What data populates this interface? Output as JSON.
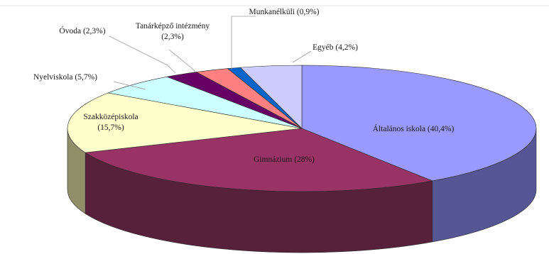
{
  "chart_data": {
    "type": "pie",
    "style": "3d",
    "title": "",
    "legend": "none",
    "unit": "%",
    "slices": [
      {
        "label": "Általános iskola",
        "value": 40.4,
        "value_text": "(40,4%)",
        "color": "#9999ff",
        "side_color": "#565694"
      },
      {
        "label": "Gimnázium",
        "value": 28,
        "value_text": "(28%)",
        "color": "#993366",
        "side_color": "#58213b"
      },
      {
        "label": "Szakközépiskola",
        "value": 15.7,
        "value_text": "(15,7%)",
        "color": "#ffffcc",
        "side_color": "#8f8f6a"
      },
      {
        "label": "Nyelviskola",
        "value": 5.7,
        "value_text": "(5,7%)",
        "color": "#ccffff",
        "side_color": "#729090"
      },
      {
        "label": "Óvoda",
        "value": 2.3,
        "value_text": "(2,3%)",
        "color": "#660066",
        "side_color": "#3a003a"
      },
      {
        "label": "Tanárképző intézmény",
        "value": 2.3,
        "value_text": "(2,3%)",
        "color": "#ff8080",
        "side_color": "#944a4a"
      },
      {
        "label": "Munkanélküli",
        "value": 0.9,
        "value_text": "(0,9%)",
        "color": "#0066cc",
        "side_color": "#003a75"
      },
      {
        "label": "Egyéb",
        "value": 4.2,
        "value_text": "(4,2%)",
        "color": "#ccccff",
        "side_color": "#767694"
      }
    ]
  }
}
